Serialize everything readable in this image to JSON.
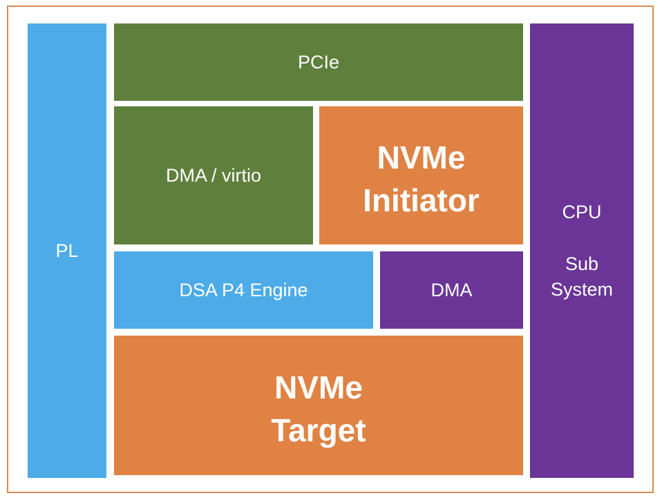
{
  "blocks": [
    {
      "lines": [
        "PL"
      ]
    },
    {
      "lines": [
        "PCIe"
      ]
    },
    {
      "lines": [
        "DMA / virtio"
      ]
    },
    {
      "lines": [
        "NVMe",
        "Initiator"
      ]
    },
    {
      "lines": [
        "DSA P4 Engine"
      ]
    },
    {
      "lines": [
        "DMA"
      ]
    },
    {
      "lines": [
        "NVMe",
        "Target"
      ]
    },
    {
      "lines": [
        "CPU",
        "Sub",
        "System"
      ]
    }
  ]
}
